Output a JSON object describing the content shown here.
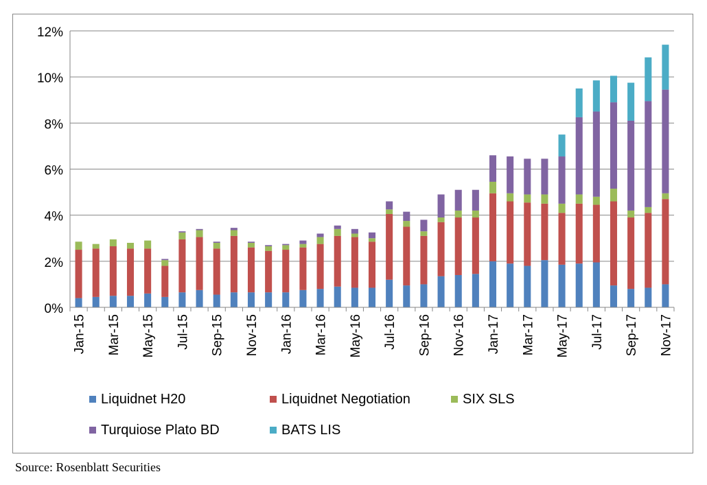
{
  "source_note": "Source: Rosenblatt Securities",
  "colors": {
    "Liquidnet H20": "#4f81bd",
    "Liquidnet Negotiation": "#c0504d",
    "SIX SLS": "#9bbb59",
    "Turquiose Plato BD": "#8064a2",
    "BATS LIS": "#4bacc6"
  },
  "chart_data": {
    "type": "bar",
    "stacked": true,
    "ylim": [
      0,
      12
    ],
    "y_ticks": [
      "0%",
      "2%",
      "4%",
      "6%",
      "8%",
      "10%",
      "12%"
    ],
    "grid": true,
    "legend_position": "bottom",
    "categories": [
      "Jan-15",
      "Feb-15",
      "Mar-15",
      "Apr-15",
      "May-15",
      "Jun-15",
      "Jul-15",
      "Aug-15",
      "Sep-15",
      "Oct-15",
      "Nov-15",
      "Dec-15",
      "Jan-16",
      "Feb-16",
      "Mar-16",
      "Apr-16",
      "May-16",
      "Jun-16",
      "Jul-16",
      "Aug-16",
      "Sep-16",
      "Oct-16",
      "Nov-16",
      "Dec-16",
      "Jan-17",
      "Feb-17",
      "Mar-17",
      "Apr-17",
      "May-17",
      "Jun-17",
      "Jul-17",
      "Aug-17",
      "Sep-17",
      "Oct-17",
      "Nov-17"
    ],
    "x_tick_labels": [
      "Jan-15",
      "Mar-15",
      "May-15",
      "Jul-15",
      "Sep-15",
      "Nov-15",
      "Jan-16",
      "Mar-16",
      "May-16",
      "Jul-16",
      "Sep-16",
      "Nov-16",
      "Jan-17",
      "Mar-17",
      "May-17",
      "Jul-17",
      "Sep-17",
      "Nov-17"
    ],
    "series": [
      {
        "name": "Liquidnet H20",
        "values": [
          0.4,
          0.45,
          0.5,
          0.5,
          0.6,
          0.45,
          0.65,
          0.75,
          0.55,
          0.65,
          0.65,
          0.65,
          0.65,
          0.75,
          0.8,
          0.9,
          0.85,
          0.85,
          1.2,
          0.95,
          1.0,
          1.35,
          1.4,
          1.45,
          2.0,
          1.9,
          1.8,
          2.05,
          1.85,
          1.9,
          1.95,
          0.95,
          0.8,
          0.85,
          1.0
        ]
      },
      {
        "name": "Liquidnet Negotiation",
        "values": [
          2.1,
          2.1,
          2.15,
          2.05,
          1.95,
          1.35,
          2.3,
          2.3,
          2.0,
          2.45,
          1.95,
          1.8,
          1.85,
          1.85,
          1.95,
          2.2,
          2.2,
          2.0,
          2.85,
          2.55,
          2.1,
          2.35,
          2.5,
          2.45,
          2.95,
          2.7,
          2.75,
          2.45,
          2.25,
          2.6,
          2.5,
          3.65,
          3.1,
          3.25,
          3.7
        ]
      },
      {
        "name": "SIX SLS",
        "values": [
          0.35,
          0.2,
          0.3,
          0.25,
          0.35,
          0.25,
          0.3,
          0.3,
          0.25,
          0.25,
          0.2,
          0.2,
          0.2,
          0.15,
          0.3,
          0.3,
          0.15,
          0.15,
          0.2,
          0.25,
          0.2,
          0.2,
          0.3,
          0.3,
          0.5,
          0.35,
          0.35,
          0.4,
          0.4,
          0.4,
          0.35,
          0.55,
          0.3,
          0.25,
          0.25
        ]
      },
      {
        "name": "Turquiose Plato BD",
        "values": [
          0,
          0,
          0,
          0,
          0,
          0.05,
          0.05,
          0.05,
          0.05,
          0.1,
          0.05,
          0.05,
          0.05,
          0.15,
          0.15,
          0.15,
          0.2,
          0.25,
          0.35,
          0.4,
          0.5,
          1.0,
          0.9,
          0.9,
          1.15,
          1.6,
          1.55,
          1.55,
          2.05,
          3.35,
          3.7,
          3.75,
          3.9,
          4.6,
          4.5
        ]
      },
      {
        "name": "BATS LIS",
        "values": [
          0,
          0,
          0,
          0,
          0,
          0,
          0,
          0,
          0,
          0,
          0,
          0,
          0,
          0,
          0,
          0,
          0,
          0,
          0,
          0,
          0,
          0,
          0,
          0,
          0,
          0,
          0,
          0,
          0.95,
          1.25,
          1.35,
          1.15,
          1.65,
          1.9,
          1.95
        ]
      }
    ],
    "legend": [
      {
        "label": "Liquidnet H20",
        "row": 0,
        "col": 0
      },
      {
        "label": "Liquidnet Negotiation",
        "row": 0,
        "col": 1
      },
      {
        "label": "SIX SLS",
        "row": 0,
        "col": 2
      },
      {
        "label": "Turquiose Plato BD",
        "row": 1,
        "col": 0
      },
      {
        "label": "BATS LIS",
        "row": 1,
        "col": 1
      }
    ]
  }
}
